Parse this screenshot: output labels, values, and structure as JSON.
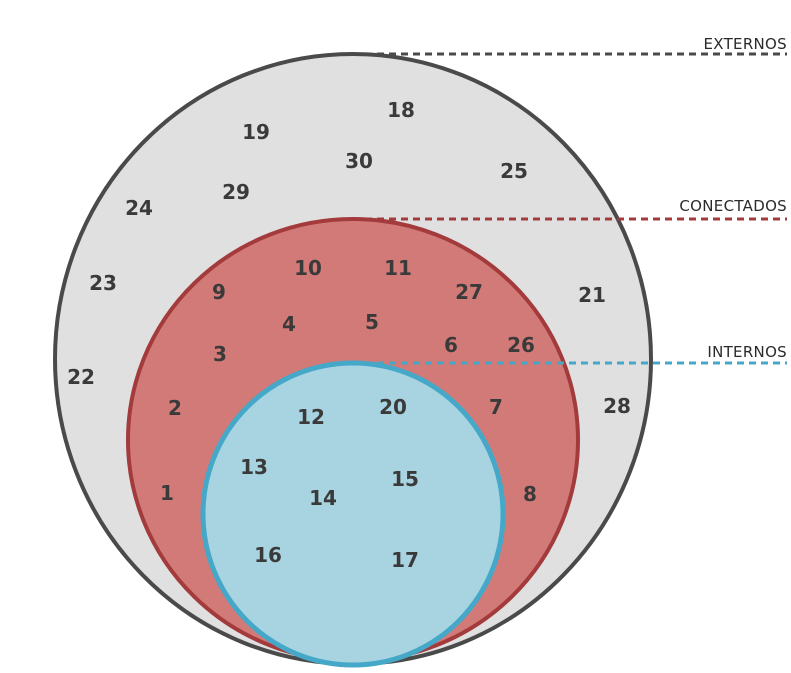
{
  "diagram": {
    "regions": [
      {
        "id": "externos",
        "label": "EXTERNOS",
        "fill": "#e0e0e0",
        "stroke": "#4a4a4a",
        "line_color": "#4a4a4a",
        "members": [
          "18",
          "19",
          "30",
          "25",
          "24",
          "29",
          "23",
          "21",
          "22",
          "28"
        ]
      },
      {
        "id": "conectados",
        "label": "CONECTADOS",
        "fill": "#d27a78",
        "stroke": "#a33b3c",
        "line_color": "#a33b3c",
        "members": [
          "10",
          "11",
          "9",
          "27",
          "4",
          "5",
          "3",
          "6",
          "26",
          "2",
          "7",
          "1",
          "8"
        ]
      },
      {
        "id": "internos",
        "label": "INTERNOS",
        "fill": "#a8d4e2",
        "stroke": "#45a8c8",
        "line_color": "#45a8c8",
        "members": [
          "12",
          "20",
          "13",
          "15",
          "14",
          "16",
          "17"
        ]
      }
    ]
  }
}
